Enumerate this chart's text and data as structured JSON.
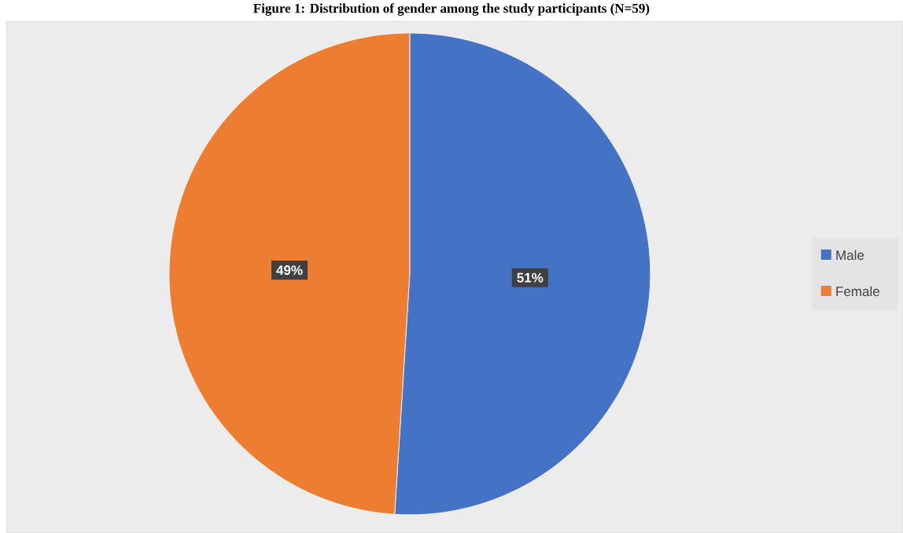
{
  "chart_data": {
    "type": "pie",
    "title": "Figure 1: Distribution of gender among the study participants (N=59)",
    "categories": [
      "Male",
      "Female"
    ],
    "values": [
      51,
      49
    ],
    "colors": [
      "#4472c4",
      "#ed7d31"
    ],
    "value_labels": [
      "51%",
      "49%"
    ],
    "legend": "right"
  }
}
